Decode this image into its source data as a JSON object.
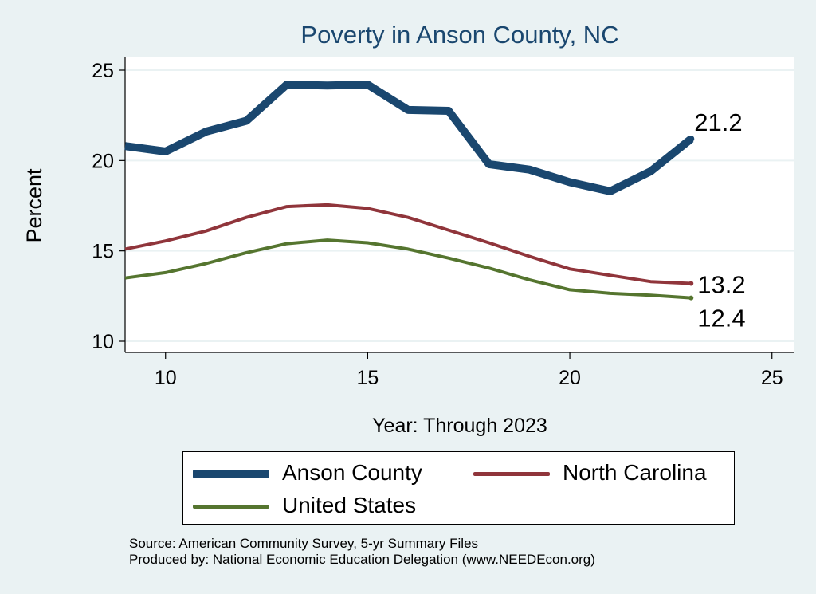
{
  "chart_data": {
    "type": "line",
    "title": "Poverty in Anson County, NC",
    "xlabel": "Year: Through 2023",
    "ylabel": "Percent",
    "xlim": [
      9,
      25
    ],
    "ylim": [
      9.5,
      25.5
    ],
    "x_ticks": [
      10,
      15,
      20,
      25
    ],
    "y_ticks": [
      10,
      15,
      20,
      25
    ],
    "grid": "horizontal",
    "legend_position": "bottom",
    "x": [
      9,
      10,
      11,
      12,
      13,
      14,
      15,
      16,
      17,
      18,
      19,
      20,
      21,
      22,
      23
    ],
    "series": [
      {
        "name": "Anson County",
        "color": "#1a476f",
        "values": [
          20.8,
          20.5,
          21.6,
          22.2,
          24.2,
          24.15,
          24.2,
          22.8,
          22.75,
          19.8,
          19.5,
          18.8,
          18.3,
          19.4,
          21.2
        ],
        "end_label": "21.2"
      },
      {
        "name": "North Carolina",
        "color": "#90353b",
        "values": [
          15.1,
          15.55,
          16.1,
          16.85,
          17.45,
          17.55,
          17.35,
          16.85,
          16.15,
          15.45,
          14.7,
          14.0,
          13.65,
          13.3,
          13.2
        ],
        "end_label": "13.2"
      },
      {
        "name": "United States",
        "color": "#55752f",
        "values": [
          13.5,
          13.8,
          14.3,
          14.9,
          15.4,
          15.6,
          15.45,
          15.1,
          14.6,
          14.05,
          13.4,
          12.85,
          12.65,
          12.55,
          12.4
        ],
        "end_label": "12.4"
      }
    ]
  },
  "source_note": {
    "line1": "Source: American Community Survey, 5-yr Summary Files",
    "line2": "Produced by: National Economic Education Delegation (www.NEEDEcon.org)"
  }
}
